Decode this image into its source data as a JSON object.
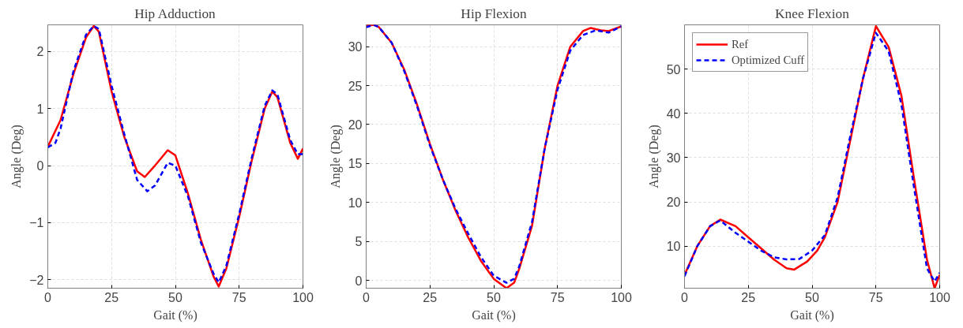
{
  "chart_data": [
    {
      "type": "line",
      "title": "Hip Adduction",
      "xlabel": "Gait (%)",
      "ylabel": "Angle (Deg)",
      "xlim": [
        0,
        100
      ],
      "xticks": [
        0,
        25,
        50,
        75,
        100
      ],
      "ylim": [
        -2.15,
        2.47
      ],
      "yticks": [
        -2,
        -1,
        0,
        1,
        2
      ],
      "grid": true,
      "legend": false,
      "series": [
        {
          "color": "#ff0000",
          "line_style": "solid",
          "x": [
            0,
            5,
            10,
            15,
            18,
            20,
            25,
            30,
            35,
            38,
            42,
            47,
            50,
            55,
            60,
            65,
            67,
            70,
            75,
            80,
            85,
            88,
            90,
            95,
            98,
            100
          ],
          "values": [
            0.33,
            0.8,
            1.6,
            2.25,
            2.45,
            2.35,
            1.3,
            0.5,
            -0.1,
            -0.2,
            0.0,
            0.27,
            0.18,
            -0.5,
            -1.3,
            -1.95,
            -2.12,
            -1.8,
            -0.9,
            0.1,
            1.0,
            1.3,
            1.2,
            0.4,
            0.12,
            0.3
          ]
        },
        {
          "color": "#0000ff",
          "line_style": "dashed",
          "x": [
            0,
            3,
            5,
            10,
            15,
            18,
            20,
            25,
            30,
            35,
            39,
            42,
            47,
            50,
            55,
            60,
            65,
            67,
            70,
            75,
            80,
            85,
            88,
            90,
            95,
            98,
            100
          ],
          "values": [
            0.32,
            0.4,
            0.65,
            1.65,
            2.3,
            2.45,
            2.4,
            1.4,
            0.55,
            -0.25,
            -0.45,
            -0.35,
            0.05,
            0.0,
            -0.55,
            -1.35,
            -1.9,
            -2.05,
            -1.75,
            -0.85,
            0.15,
            1.05,
            1.32,
            1.25,
            0.45,
            0.2,
            0.2
          ]
        }
      ]
    },
    {
      "type": "line",
      "title": "Hip Flexion",
      "xlabel": "Gait (%)",
      "ylabel": "Angle (Deg)",
      "xlim": [
        0,
        100
      ],
      "xticks": [
        0,
        25,
        50,
        75,
        100
      ],
      "ylim": [
        -1,
        32.8
      ],
      "yticks": [
        0,
        5,
        10,
        15,
        20,
        25,
        30
      ],
      "grid": true,
      "legend": false,
      "series": [
        {
          "color": "#ff0000",
          "line_style": "solid",
          "x": [
            0,
            3,
            5,
            10,
            15,
            20,
            25,
            30,
            35,
            40,
            45,
            50,
            55,
            58,
            60,
            65,
            70,
            75,
            80,
            85,
            88,
            92,
            95,
            100
          ],
          "values": [
            32.7,
            32.8,
            32.5,
            30.5,
            27,
            22.5,
            17.5,
            13,
            9,
            5.5,
            2.5,
            0.2,
            -1,
            -0.3,
            1.5,
            7,
            17,
            25,
            30,
            32,
            32.4,
            32.1,
            32.0,
            32.6
          ]
        },
        {
          "color": "#0000ff",
          "line_style": "dashed",
          "x": [
            0,
            3,
            5,
            10,
            15,
            20,
            25,
            30,
            35,
            40,
            45,
            50,
            55,
            58,
            60,
            65,
            70,
            75,
            80,
            85,
            90,
            95,
            100
          ],
          "values": [
            32.5,
            32.8,
            32.5,
            30.5,
            26.8,
            22.3,
            17.3,
            13,
            9.2,
            6,
            3,
            0.6,
            -0.3,
            0.2,
            1.8,
            7.5,
            17,
            24.5,
            29.5,
            31.5,
            32.1,
            31.8,
            32.6
          ]
        }
      ]
    },
    {
      "type": "line",
      "title": "Knee Flexion",
      "xlabel": "Gait (%)",
      "ylabel": "Angle (Deg)",
      "xlim": [
        0,
        100
      ],
      "xticks": [
        0,
        25,
        50,
        75,
        100
      ],
      "ylim": [
        0.5,
        60
      ],
      "yticks": [
        10,
        20,
        30,
        40,
        50
      ],
      "grid": true,
      "legend": "top left",
      "series": [
        {
          "name": "Ref",
          "color": "#ff0000",
          "line_style": "solid",
          "x": [
            0,
            5,
            10,
            14,
            20,
            25,
            30,
            35,
            40,
            43,
            48,
            52,
            55,
            60,
            65,
            70,
            75,
            80,
            85,
            90,
            95,
            98,
            100
          ],
          "values": [
            3.5,
            10,
            14.5,
            16,
            14.5,
            12,
            9.5,
            7,
            5,
            4.7,
            6.5,
            9,
            12,
            20,
            34,
            48,
            59.7,
            55,
            44,
            25,
            7,
            0.5,
            3.5
          ]
        },
        {
          "name": "Optimized Cuff",
          "color": "#0000ff",
          "line_style": "dashed",
          "x": [
            0,
            5,
            10,
            14,
            20,
            25,
            30,
            35,
            40,
            45,
            50,
            55,
            60,
            65,
            70,
            75,
            80,
            85,
            90,
            95,
            98,
            100
          ],
          "values": [
            3.2,
            10,
            14.5,
            15.8,
            13,
            11,
            9,
            7.5,
            7,
            7.1,
            9,
            12.5,
            21,
            35,
            48,
            58.2,
            54,
            42,
            23,
            5,
            2,
            4
          ]
        }
      ]
    }
  ]
}
